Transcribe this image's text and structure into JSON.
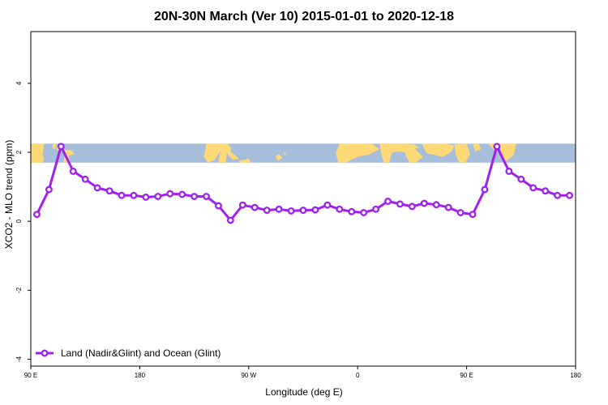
{
  "chart_data": {
    "type": "line",
    "title": "20N-30N March (Ver 10)   2015-01-01 to 2020-12-18",
    "xlabel": "Longitude (deg E)",
    "ylabel": "XCO2 - MLO trend (ppm)",
    "xlim": [
      90,
      540
    ],
    "ylim": [
      -4.2,
      5.5
    ],
    "x_ticks": [
      {
        "value": 90,
        "label": "90 E"
      },
      {
        "value": 180,
        "label": "180"
      },
      {
        "value": 270,
        "label": "90 W"
      },
      {
        "value": 360,
        "label": "0"
      },
      {
        "value": 450,
        "label": "90 E"
      },
      {
        "value": 540,
        "label": "180"
      }
    ],
    "y_ticks": [
      {
        "value": -4,
        "label": "-4"
      },
      {
        "value": -2,
        "label": "-2"
      },
      {
        "value": 0,
        "label": "0"
      },
      {
        "value": 2,
        "label": "2"
      },
      {
        "value": 4,
        "label": "4"
      }
    ],
    "map_band": {
      "ymin": 1.7,
      "ymax": 2.25,
      "ocean_color": "#a6bddc",
      "land_color": "#fed976"
    },
    "legend_position": "bottom-left",
    "series": [
      {
        "name": "Land (Nadir&Glint) and Ocean (Glint)",
        "color": "#a020f0",
        "x": [
          95,
          105,
          115,
          125,
          135,
          145,
          155,
          165,
          175,
          185,
          195,
          205,
          215,
          225,
          235,
          245,
          255,
          265,
          275,
          285,
          295,
          305,
          315,
          325,
          335,
          345,
          355,
          365,
          375,
          385,
          395,
          405,
          415,
          425,
          435,
          445,
          455,
          465,
          475,
          485,
          495,
          505,
          515,
          525,
          535
        ],
        "values": [
          0.2,
          0.92,
          2.17,
          1.45,
          1.22,
          0.97,
          0.88,
          0.75,
          0.75,
          0.7,
          0.72,
          0.8,
          0.78,
          0.72,
          0.72,
          0.45,
          0.03,
          0.47,
          0.4,
          0.32,
          0.35,
          0.3,
          0.32,
          0.33,
          0.47,
          0.35,
          0.28,
          0.25,
          0.35,
          0.58,
          0.5,
          0.43,
          0.52,
          0.48,
          0.4,
          0.25,
          0.2,
          0.92,
          2.17,
          1.45,
          1.22,
          0.97,
          0.88,
          0.75,
          0.75
        ]
      }
    ]
  }
}
